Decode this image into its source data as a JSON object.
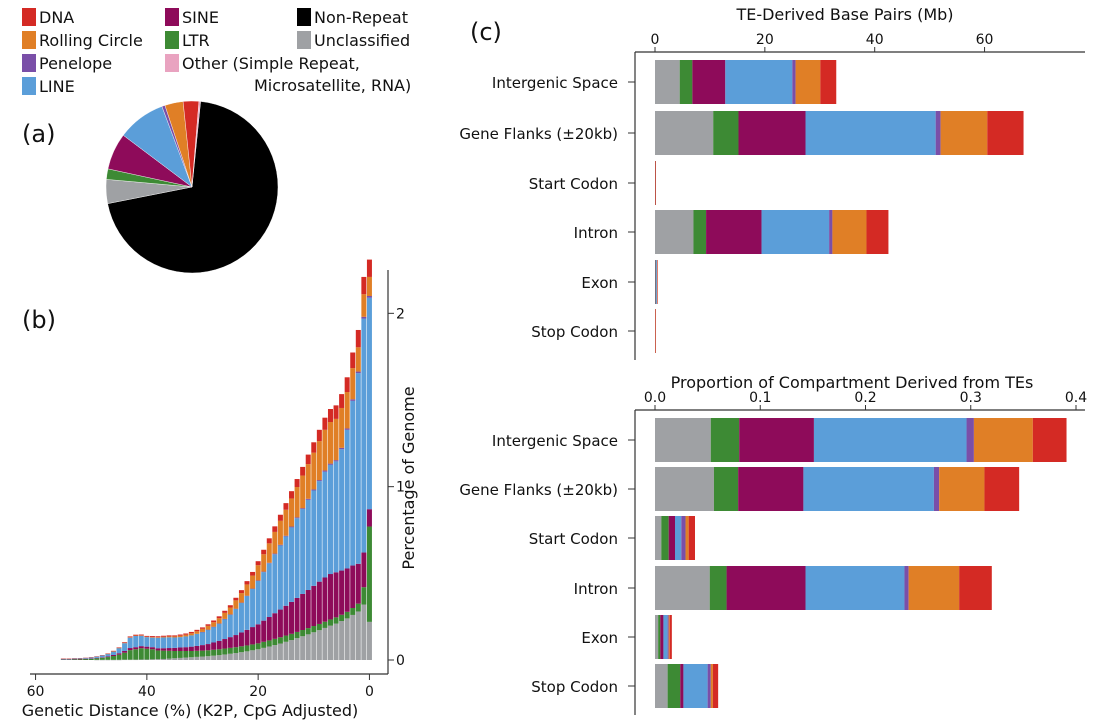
{
  "colors": {
    "DNA": "#d42a24",
    "Rolling Circle": "#e07f26",
    "Penelope": "#7a4fa8",
    "LINE": "#5b9ed9",
    "SINE": "#8e0b5a",
    "LTR": "#3d8a34",
    "Other": "#e9a3c0",
    "Non-Repeat": "#000000",
    "Unclassified": "#9fa1a4"
  },
  "legend": [
    {
      "key": "DNA",
      "label": "DNA"
    },
    {
      "key": "Rolling Circle",
      "label": "Rolling Circle"
    },
    {
      "key": "Penelope",
      "label": "Penelope"
    },
    {
      "key": "LINE",
      "label": "LINE"
    },
    {
      "key": "SINE",
      "label": "SINE"
    },
    {
      "key": "LTR",
      "label": "LTR"
    },
    {
      "key": "Other",
      "label": "Other (Simple Repeat,",
      "label2": "Microsatellite, RNA)"
    },
    {
      "key": "Non-Repeat",
      "label": "Non-Repeat"
    },
    {
      "key": "Unclassified",
      "label": "Unclassified"
    }
  ],
  "panels": {
    "a": "(a)",
    "b": "(b)",
    "c": "(c)"
  },
  "chart_data": [
    {
      "id": "a",
      "type": "pie",
      "slices": [
        {
          "key": "Non-Repeat",
          "value": 71.5
        },
        {
          "key": "Unclassified",
          "value": 4.6
        },
        {
          "key": "LTR",
          "value": 2.0
        },
        {
          "key": "SINE",
          "value": 7.0
        },
        {
          "key": "LINE",
          "value": 9.2
        },
        {
          "key": "Penelope",
          "value": 0.6
        },
        {
          "key": "Rolling Circle",
          "value": 3.5
        },
        {
          "key": "DNA",
          "value": 3.0
        },
        {
          "key": "Other",
          "value": 0.3
        }
      ]
    },
    {
      "id": "b",
      "type": "bar",
      "stacked": true,
      "xlabel": "Genetic Distance (%) (K2P, CpG Adjusted)",
      "ylabel": "Percentage of Genome",
      "xlim": [
        61,
        -1
      ],
      "ylim": [
        0,
        2.25
      ],
      "xticks": [
        60,
        40,
        20,
        0
      ],
      "yticks": [
        0,
        1,
        2
      ],
      "stack_order": [
        "Unclassified",
        "LTR",
        "SINE",
        "LINE",
        "Penelope",
        "Rolling Circle",
        "DNA"
      ],
      "bins": [
        {
          "x": 55,
          "v": [
            0,
            0.003,
            0.001,
            0.003,
            0,
            0,
            0.001
          ]
        },
        {
          "x": 54,
          "v": [
            0,
            0.003,
            0.001,
            0.003,
            0,
            0,
            0.001
          ]
        },
        {
          "x": 53,
          "v": [
            0,
            0.004,
            0.001,
            0.004,
            0,
            0,
            0.001
          ]
        },
        {
          "x": 52,
          "v": [
            0,
            0.005,
            0.001,
            0.004,
            0,
            0,
            0.001
          ]
        },
        {
          "x": 51,
          "v": [
            0,
            0.006,
            0.001,
            0.005,
            0,
            0,
            0.001
          ]
        },
        {
          "x": 50,
          "v": [
            0,
            0.007,
            0.002,
            0.006,
            0,
            0,
            0.001
          ]
        },
        {
          "x": 49,
          "v": [
            0.001,
            0.009,
            0.002,
            0.008,
            0,
            0,
            0.001
          ]
        },
        {
          "x": 48,
          "v": [
            0.001,
            0.012,
            0.003,
            0.01,
            0,
            0,
            0.002
          ]
        },
        {
          "x": 47,
          "v": [
            0.001,
            0.016,
            0.004,
            0.014,
            0,
            0.001,
            0.002
          ]
        },
        {
          "x": 46,
          "v": [
            0.001,
            0.022,
            0.006,
            0.02,
            0,
            0.001,
            0.003
          ]
        },
        {
          "x": 45,
          "v": [
            0.001,
            0.03,
            0.008,
            0.03,
            0,
            0.001,
            0.003
          ]
        },
        {
          "x": 44,
          "v": [
            0.002,
            0.04,
            0.01,
            0.045,
            0,
            0.002,
            0.004
          ]
        },
        {
          "x": 43,
          "v": [
            0.002,
            0.055,
            0.012,
            0.06,
            0,
            0.002,
            0.005
          ]
        },
        {
          "x": 42,
          "v": [
            0.002,
            0.06,
            0.012,
            0.065,
            0,
            0.002,
            0.005
          ]
        },
        {
          "x": 41,
          "v": [
            0.003,
            0.065,
            0.012,
            0.06,
            0,
            0.002,
            0.005
          ]
        },
        {
          "x": 40,
          "v": [
            0.003,
            0.062,
            0.012,
            0.055,
            0,
            0.002,
            0.005
          ]
        },
        {
          "x": 39,
          "v": [
            0.004,
            0.058,
            0.012,
            0.055,
            0,
            0.003,
            0.006
          ]
        },
        {
          "x": 38,
          "v": [
            0.005,
            0.05,
            0.013,
            0.06,
            0,
            0.003,
            0.006
          ]
        },
        {
          "x": 37,
          "v": [
            0.006,
            0.048,
            0.014,
            0.062,
            0,
            0.004,
            0.006
          ]
        },
        {
          "x": 36,
          "v": [
            0.008,
            0.045,
            0.016,
            0.062,
            0,
            0.005,
            0.006
          ]
        },
        {
          "x": 35,
          "v": [
            0.01,
            0.042,
            0.018,
            0.06,
            0,
            0.006,
            0.006
          ]
        },
        {
          "x": 34,
          "v": [
            0.012,
            0.04,
            0.02,
            0.06,
            0,
            0.008,
            0.007
          ]
        },
        {
          "x": 33,
          "v": [
            0.014,
            0.038,
            0.022,
            0.062,
            0,
            0.01,
            0.007
          ]
        },
        {
          "x": 32,
          "v": [
            0.016,
            0.036,
            0.025,
            0.065,
            0,
            0.012,
            0.008
          ]
        },
        {
          "x": 31,
          "v": [
            0.018,
            0.035,
            0.028,
            0.07,
            0,
            0.015,
            0.008
          ]
        },
        {
          "x": 30,
          "v": [
            0.02,
            0.034,
            0.032,
            0.075,
            0.001,
            0.018,
            0.008
          ]
        },
        {
          "x": 29,
          "v": [
            0.022,
            0.034,
            0.036,
            0.082,
            0.001,
            0.022,
            0.009
          ]
        },
        {
          "x": 28,
          "v": [
            0.025,
            0.034,
            0.042,
            0.09,
            0.001,
            0.026,
            0.01
          ]
        },
        {
          "x": 27,
          "v": [
            0.028,
            0.034,
            0.048,
            0.1,
            0.001,
            0.03,
            0.011
          ]
        },
        {
          "x": 26,
          "v": [
            0.032,
            0.034,
            0.055,
            0.115,
            0.001,
            0.035,
            0.012
          ]
        },
        {
          "x": 25,
          "v": [
            0.036,
            0.034,
            0.062,
            0.13,
            0.001,
            0.04,
            0.013
          ]
        },
        {
          "x": 24,
          "v": [
            0.04,
            0.034,
            0.07,
            0.15,
            0.002,
            0.048,
            0.015
          ]
        },
        {
          "x": 23,
          "v": [
            0.045,
            0.034,
            0.08,
            0.17,
            0.002,
            0.055,
            0.017
          ]
        },
        {
          "x": 22,
          "v": [
            0.05,
            0.034,
            0.09,
            0.195,
            0.002,
            0.065,
            0.019
          ]
        },
        {
          "x": 21,
          "v": [
            0.056,
            0.034,
            0.1,
            0.22,
            0.002,
            0.075,
            0.021
          ]
        },
        {
          "x": 20,
          "v": [
            0.062,
            0.034,
            0.11,
            0.25,
            0.003,
            0.088,
            0.023
          ]
        },
        {
          "x": 19,
          "v": [
            0.07,
            0.035,
            0.122,
            0.28,
            0.003,
            0.1,
            0.026
          ]
        },
        {
          "x": 18,
          "v": [
            0.078,
            0.035,
            0.135,
            0.31,
            0.003,
            0.112,
            0.029
          ]
        },
        {
          "x": 17,
          "v": [
            0.086,
            0.036,
            0.148,
            0.34,
            0.004,
            0.125,
            0.032
          ]
        },
        {
          "x": 16,
          "v": [
            0.095,
            0.036,
            0.16,
            0.37,
            0.004,
            0.138,
            0.035
          ]
        },
        {
          "x": 15,
          "v": [
            0.105,
            0.036,
            0.172,
            0.4,
            0.004,
            0.15,
            0.038
          ]
        },
        {
          "x": 14,
          "v": [
            0.115,
            0.036,
            0.184,
            0.43,
            0.005,
            0.162,
            0.042
          ]
        },
        {
          "x": 13,
          "v": [
            0.126,
            0.036,
            0.196,
            0.46,
            0.005,
            0.175,
            0.046
          ]
        },
        {
          "x": 12,
          "v": [
            0.137,
            0.036,
            0.208,
            0.49,
            0.005,
            0.188,
            0.05
          ]
        },
        {
          "x": 11,
          "v": [
            0.148,
            0.036,
            0.22,
            0.52,
            0.006,
            0.2,
            0.055
          ]
        },
        {
          "x": 10,
          "v": [
            0.16,
            0.036,
            0.232,
            0.55,
            0.006,
            0.212,
            0.06
          ]
        },
        {
          "x": 9,
          "v": [
            0.172,
            0.036,
            0.244,
            0.58,
            0.006,
            0.225,
            0.065
          ]
        },
        {
          "x": 8,
          "v": [
            0.185,
            0.036,
            0.255,
            0.61,
            0.007,
            0.235,
            0.07
          ]
        },
        {
          "x": 7,
          "v": [
            0.198,
            0.036,
            0.262,
            0.63,
            0.007,
            0.24,
            0.075
          ]
        },
        {
          "x": 6,
          "v": [
            0.21,
            0.036,
            0.26,
            0.64,
            0.007,
            0.238,
            0.078
          ]
        },
        {
          "x": 5,
          "v": [
            0.225,
            0.036,
            0.255,
            0.7,
            0.008,
            0.23,
            0.08
          ]
        },
        {
          "x": 4,
          "v": [
            0.24,
            0.038,
            0.25,
            0.8,
            0.008,
            0.21,
            0.085
          ]
        },
        {
          "x": 3,
          "v": [
            0.26,
            0.04,
            0.245,
            0.95,
            0.009,
            0.18,
            0.09
          ]
        },
        {
          "x": 2,
          "v": [
            0.28,
            0.045,
            0.23,
            1.1,
            0.009,
            0.14,
            0.1
          ]
        },
        {
          "x": 1,
          "v": [
            0.32,
            0.1,
            0.2,
            1.35,
            0.01,
            0.13,
            0.1
          ]
        },
        {
          "x": 0,
          "v": [
            0.22,
            0.55,
            0.1,
            1.22,
            0.01,
            0.11,
            0.1
          ]
        }
      ]
    },
    {
      "id": "c-top",
      "type": "bar",
      "orientation": "horizontal",
      "stacked": true,
      "title": "TE-Derived Base Pairs (Mb)",
      "xlim": [
        0,
        67
      ],
      "xticks": [
        0,
        20,
        40,
        60
      ],
      "stack_order": [
        "Unclassified",
        "LTR",
        "SINE",
        "LINE",
        "Penelope",
        "Rolling Circle",
        "DNA"
      ],
      "categories": [
        "Intergenic Space",
        "Gene Flanks (±20kb)",
        "Start Codon",
        "Intron",
        "Exon",
        "Stop Codon"
      ],
      "values": [
        [
          4.5,
          2.3,
          6.0,
          12.2,
          0.6,
          4.5,
          2.9
        ],
        [
          10.6,
          4.6,
          12.2,
          23.7,
          0.9,
          8.5,
          6.6
        ],
        [
          0.02,
          0.005,
          0.01,
          0.02,
          0,
          0.01,
          0.01
        ],
        [
          7.0,
          2.3,
          10.1,
          12.3,
          0.6,
          6.2,
          4.0
        ],
        [
          0.05,
          0.05,
          0.05,
          0.2,
          0,
          0.05,
          0.03
        ],
        [
          0.01,
          0.005,
          0.005,
          0.01,
          0,
          0.005,
          0.005
        ]
      ]
    },
    {
      "id": "c-bottom",
      "type": "bar",
      "orientation": "horizontal",
      "stacked": true,
      "title": "Proportion of Compartment Derived from TEs",
      "xlim": [
        0,
        0.4
      ],
      "xticks": [
        0.0,
        0.1,
        0.2,
        0.3,
        0.4
      ],
      "xticklabels": [
        "0.0",
        "0.1",
        "0.2",
        "0.3",
        "0.4"
      ],
      "stack_order": [
        "Unclassified",
        "LTR",
        "SINE",
        "LINE",
        "Penelope",
        "Rolling Circle",
        "DNA"
      ],
      "categories": [
        "Intergenic Space",
        "Gene Flanks (±20kb)",
        "Start Codon",
        "Intron",
        "Exon",
        "Stop Codon"
      ],
      "values": [
        [
          0.053,
          0.027,
          0.071,
          0.145,
          0.007,
          0.056,
          0.032
        ],
        [
          0.056,
          0.023,
          0.062,
          0.124,
          0.005,
          0.043,
          0.033
        ],
        [
          0.006,
          0.007,
          0.006,
          0.006,
          0.004,
          0.003,
          0.006
        ],
        [
          0.052,
          0.016,
          0.075,
          0.094,
          0.004,
          0.048,
          0.031
        ],
        [
          0.003,
          0.002,
          0.003,
          0.004,
          0.001,
          0.001,
          0.002
        ],
        [
          0.012,
          0.012,
          0.003,
          0.023,
          0.003,
          0.002,
          0.005
        ]
      ]
    }
  ]
}
